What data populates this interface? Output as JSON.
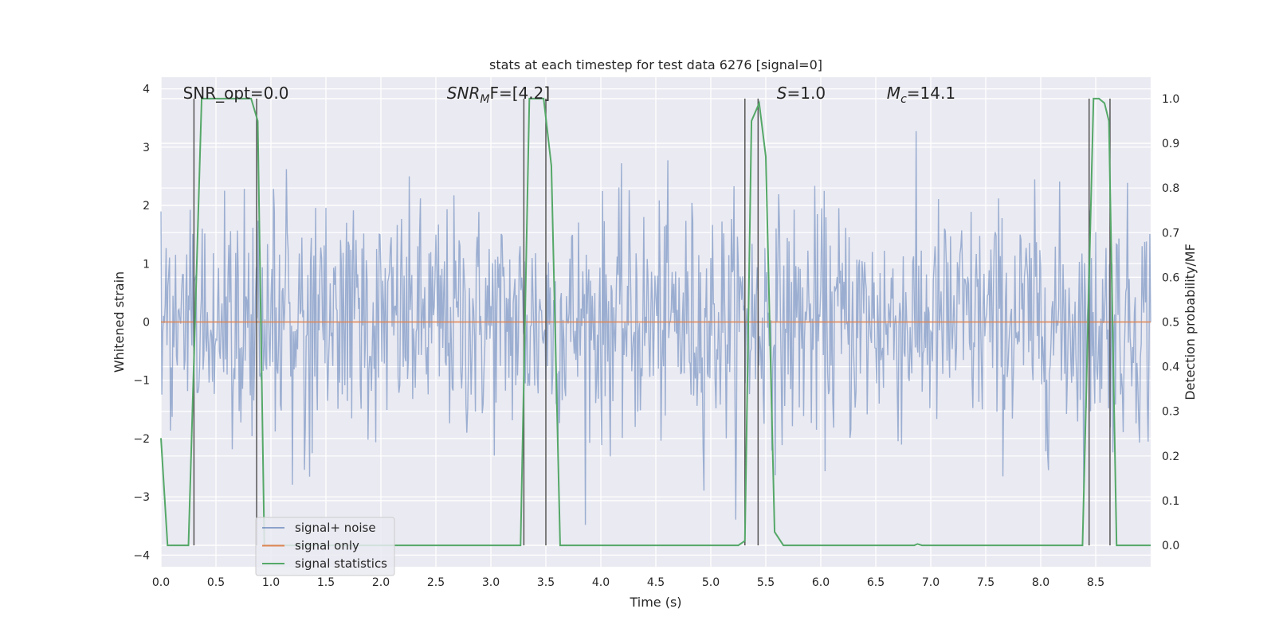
{
  "chart_data": {
    "type": "line",
    "title": "stats at each timestep for test data 6276 [signal=0]",
    "xlabel": "Time (s)",
    "ylabel": "Whitened strain",
    "y2label": "Detection probability/MF",
    "xlim": [
      0,
      9
    ],
    "ylim": [
      -4.2,
      4.2
    ],
    "y2lim": [
      -0.048,
      1.048
    ],
    "xticks": [
      0.0,
      0.5,
      1.0,
      1.5,
      2.0,
      2.5,
      3.0,
      3.5,
      4.0,
      4.5,
      5.0,
      5.5,
      6.0,
      6.5,
      7.0,
      7.5,
      8.0,
      8.5
    ],
    "xtick_labels": [
      "0.0",
      "0.5",
      "1.0",
      "1.5",
      "2.0",
      "2.5",
      "3.0",
      "3.5",
      "4.0",
      "4.5",
      "5.0",
      "5.5",
      "6.0",
      "6.5",
      "7.0",
      "7.5",
      "8.0",
      "8.5"
    ],
    "yticks": [
      4,
      3,
      2,
      1,
      0,
      -1,
      -2,
      -3,
      -4
    ],
    "ytick_labels": [
      "4",
      "3",
      "2",
      "1",
      "0",
      "−1",
      "−2",
      "−3",
      "−4"
    ],
    "y2ticks": [
      1.0,
      0.9,
      0.8,
      0.7,
      0.6,
      0.5,
      0.4,
      0.3,
      0.2,
      0.1,
      0.0
    ],
    "y2tick_labels": [
      "1.0",
      "0.9",
      "0.8",
      "0.7",
      "0.6",
      "0.5",
      "0.4",
      "0.3",
      "0.2",
      "0.1",
      "0.0"
    ],
    "annotations": [
      {
        "text": "SNR_opt=0.0",
        "x": 0.2
      },
      {
        "text": "SNR_MF=[4.2]",
        "x": 2.6,
        "math": true,
        "main": "SNR",
        "sub": "M",
        "tail": "F=[4.2]"
      },
      {
        "text": "S=1.0",
        "x": 5.6,
        "math": true,
        "main": "S",
        "sub": "",
        "tail": "=1.0"
      },
      {
        "text": "M_c=14.1",
        "x": 6.6,
        "math": true,
        "main": "M",
        "sub": "c",
        "tail": "=14.1"
      }
    ],
    "vertical_markers_s": [
      0.3,
      0.87,
      3.3,
      3.5,
      5.31,
      5.43,
      8.44,
      8.63
    ],
    "series": [
      {
        "name": "signal+ noise",
        "color": "#4c72b0",
        "kind": "noise",
        "sample_rate_hz": 128,
        "std": 1.0
      },
      {
        "name": "signal only",
        "color": "#dd8452",
        "kind": "constant",
        "value": 0.0
      },
      {
        "name": "signal statistics",
        "color": "#55a868",
        "axis": "right",
        "x": [
          0.0,
          0.06,
          0.25,
          0.37,
          0.55,
          0.82,
          0.88,
          0.94,
          3.27,
          3.35,
          3.4,
          3.48,
          3.55,
          3.63,
          5.25,
          5.31,
          5.37,
          5.44,
          5.5,
          5.58,
          5.66,
          6.85,
          6.88,
          6.92,
          8.38,
          8.48,
          8.53,
          8.58,
          8.62,
          8.69,
          8.75,
          9.0
        ],
        "y": [
          0.24,
          0.0,
          0.0,
          1.0,
          1.0,
          1.0,
          0.95,
          0.0,
          0.0,
          1.0,
          1.0,
          1.0,
          0.85,
          0.0,
          0.0,
          0.01,
          0.95,
          0.99,
          0.87,
          0.03,
          0.0,
          0.0,
          0.003,
          0.0,
          0.0,
          1.0,
          1.0,
          0.99,
          0.95,
          0.0,
          0.0,
          0.0
        ]
      }
    ],
    "legend": {
      "placement": "lower-left",
      "entries": [
        "signal+ noise",
        "signal only",
        "signal statistics"
      ]
    }
  }
}
